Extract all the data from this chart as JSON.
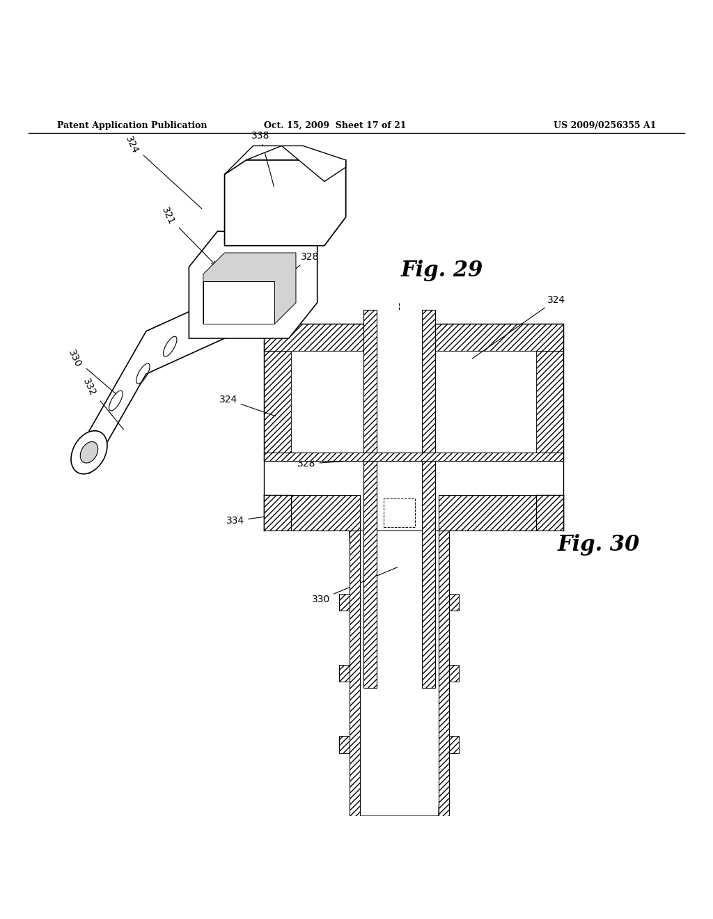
{
  "bg_color": "#ffffff",
  "header_left": "Patent Application Publication",
  "header_center": "Oct. 15, 2009  Sheet 17 of 21",
  "header_right": "US 2009/0256355 A1",
  "fig29_label": "Fig. 29",
  "fig30_label": "Fig. 30"
}
